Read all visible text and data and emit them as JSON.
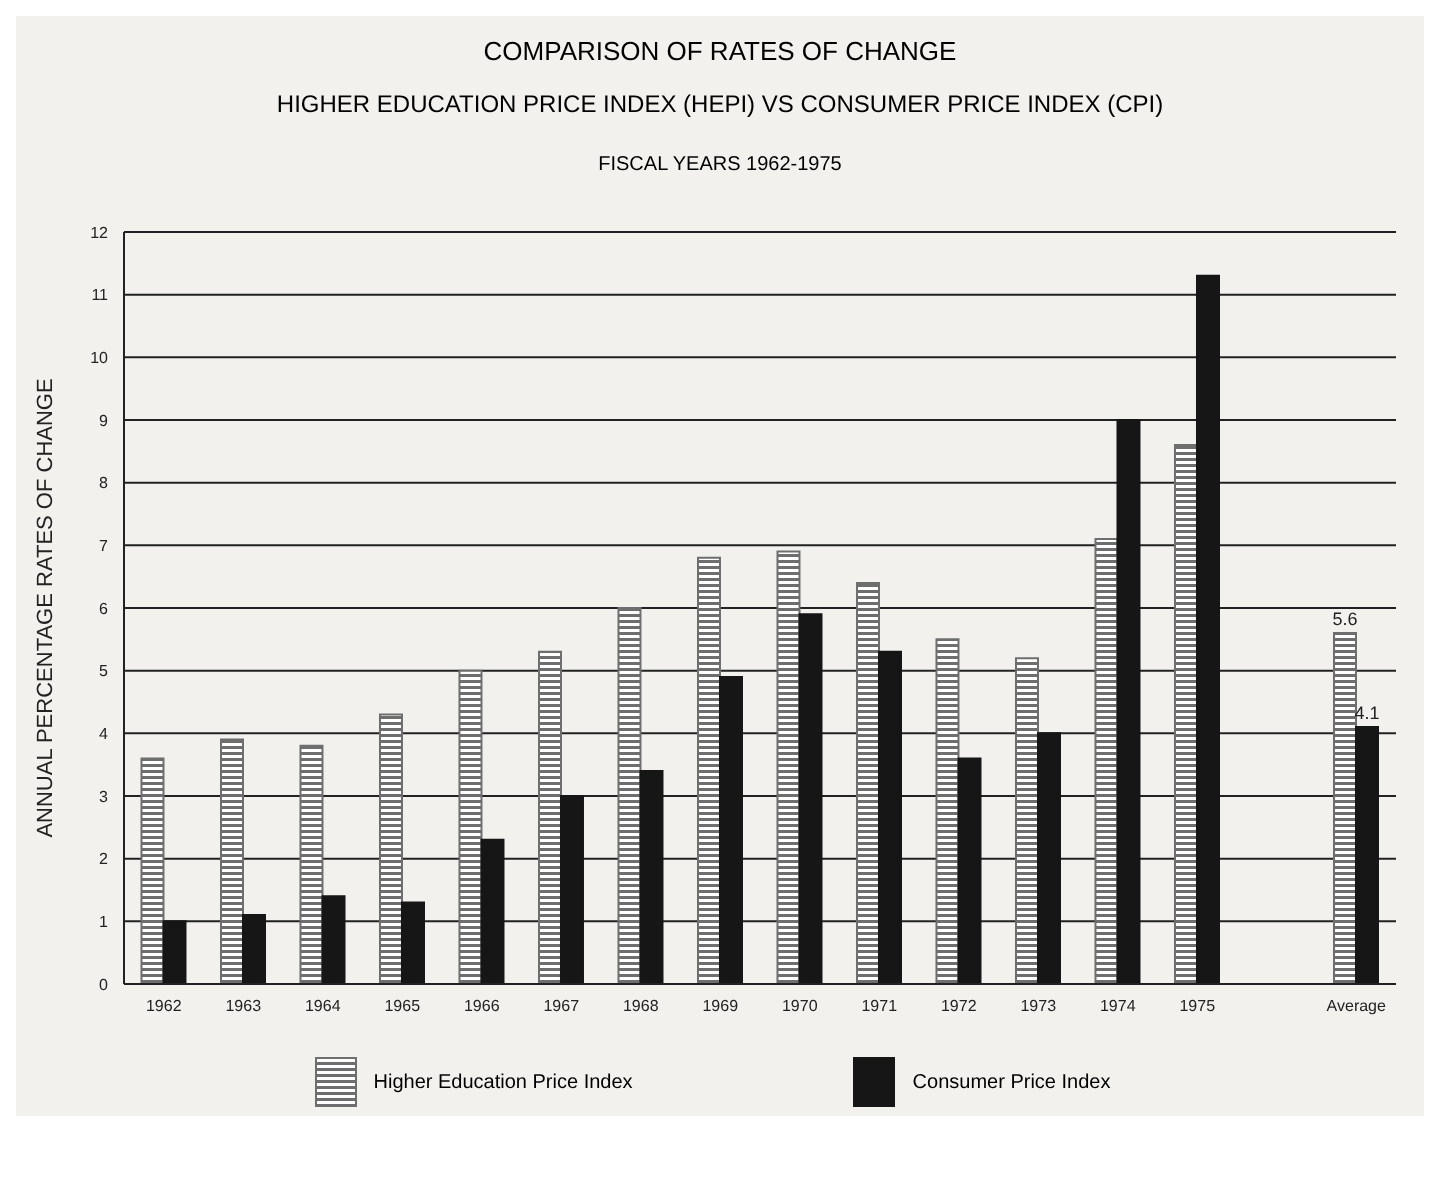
{
  "chart_data": {
    "type": "bar",
    "title": "COMPARISON OF RATES OF CHANGE",
    "subtitle": "HIGHER EDUCATION PRICE INDEX (HEPI) VS CONSUMER PRICE INDEX (CPI)",
    "annotations": [
      "FISCAL YEARS 1962-1975"
    ],
    "ylabel": "ANNUAL PERCENTAGE RATES OF CHANGE",
    "categories": [
      "1962",
      "1963",
      "1964",
      "1965",
      "1966",
      "1967",
      "1968",
      "1969",
      "1970",
      "1971",
      "1972",
      "1973",
      "1974",
      "1975",
      null,
      "Average"
    ],
    "series": [
      {
        "name": "Higher Education Price Index",
        "color": "#6e6e6e",
        "values": [
          3.6,
          3.9,
          3.8,
          4.3,
          5.0,
          5.3,
          6.0,
          6.8,
          6.9,
          6.4,
          5.5,
          5.2,
          7.1,
          8.6,
          null,
          5.6
        ],
        "value_labels": [
          null,
          null,
          null,
          null,
          null,
          null,
          null,
          null,
          null,
          null,
          null,
          null,
          null,
          null,
          null,
          "5.6"
        ]
      },
      {
        "name": "Consumer Price Index",
        "color": "#161616",
        "values": [
          1.0,
          1.1,
          1.4,
          1.3,
          2.3,
          3.0,
          3.4,
          4.9,
          5.9,
          5.3,
          3.6,
          4.0,
          9.0,
          11.3,
          null,
          4.1
        ],
        "value_labels": [
          null,
          null,
          null,
          null,
          null,
          null,
          null,
          null,
          null,
          null,
          null,
          null,
          null,
          null,
          null,
          "4.1"
        ]
      }
    ],
    "ylim": [
      0,
      12
    ],
    "yticks": [
      0,
      1,
      2,
      3,
      4,
      5,
      6,
      7,
      8,
      9,
      10,
      11,
      12
    ],
    "grid": "y",
    "legend": "bottom"
  }
}
